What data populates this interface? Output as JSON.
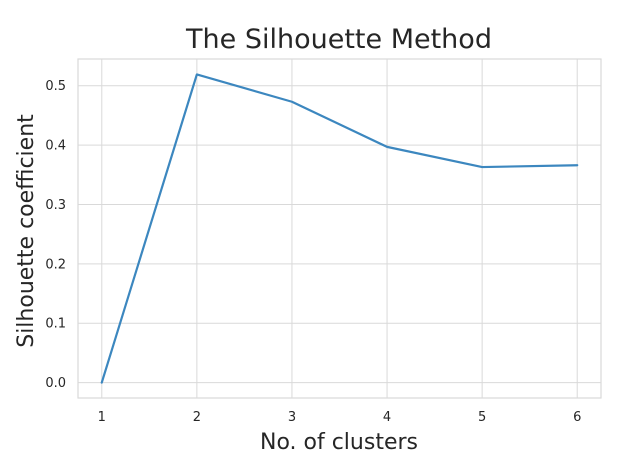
{
  "chart_data": {
    "type": "line",
    "title": "The Silhouette Method",
    "xlabel": "No. of clusters",
    "ylabel": "Silhouette coefficient",
    "x": [
      1,
      2,
      3,
      4,
      5,
      6
    ],
    "series": [
      {
        "values": [
          0.0,
          0.519,
          0.473,
          0.397,
          0.363,
          0.366
        ]
      }
    ],
    "xticks": [
      1,
      2,
      3,
      4,
      5,
      6
    ],
    "yticks": [
      0.0,
      0.1,
      0.2,
      0.3,
      0.4,
      0.5
    ],
    "ytick_labels": [
      "0.0",
      "0.1",
      "0.2",
      "0.3",
      "0.4",
      "0.5"
    ],
    "xlim": [
      0.75,
      6.25
    ],
    "ylim": [
      -0.026,
      0.545
    ],
    "grid": true,
    "colors": {
      "line": "#3c87bf",
      "grid": "#d9d9d9",
      "text": "#262626"
    }
  }
}
